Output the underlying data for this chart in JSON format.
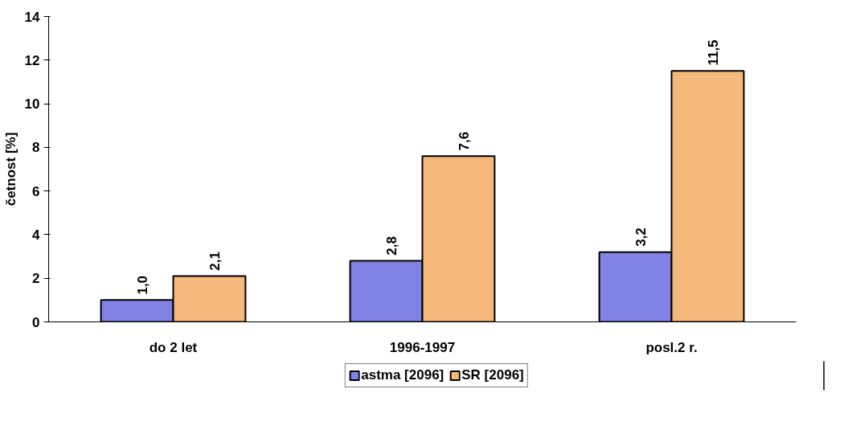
{
  "chart_data": {
    "type": "bar",
    "ylabel": "četnost [%]",
    "categories": [
      "do 2 let",
      "1996-1997",
      "posl.2 r."
    ],
    "series": [
      {
        "name": "astma [2096]",
        "color": "#8282e4",
        "values": [
          1.0,
          2.8,
          3.2
        ],
        "value_labels": [
          "1,0",
          "2,8",
          "3,2"
        ]
      },
      {
        "name": "SR [2096]",
        "color": "#f5b97b",
        "values": [
          2.1,
          7.6,
          11.5
        ],
        "value_labels": [
          "2,1",
          "7,6",
          "11,5"
        ]
      }
    ],
    "ylim": [
      0,
      14
    ],
    "yticks": [
      0,
      2,
      4,
      6,
      8,
      10,
      12,
      14
    ],
    "grid": false,
    "legend": "bottom"
  }
}
